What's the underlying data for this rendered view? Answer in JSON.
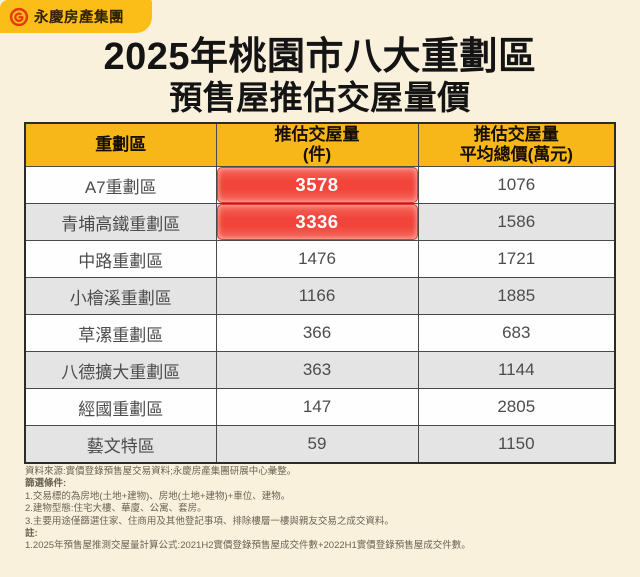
{
  "brand": {
    "name": "永慶房產集團"
  },
  "title": {
    "line1": "2025年桃園市八大重劃區",
    "line2": "預售屋推估交屋量價"
  },
  "table": {
    "headers": [
      {
        "line1": "重劃區",
        "line2": ""
      },
      {
        "line1": "推估交屋量",
        "line2": "(件)"
      },
      {
        "line1": "推估交屋量",
        "line2": "平均總價(萬元)"
      }
    ],
    "rows": [
      {
        "district": "A7重劃區",
        "volume": "3578",
        "price": "1076",
        "highlight": true
      },
      {
        "district": "青埔高鐵重劃區",
        "volume": "3336",
        "price": "1586",
        "highlight": true
      },
      {
        "district": "中路重劃區",
        "volume": "1476",
        "price": "1721",
        "highlight": false
      },
      {
        "district": "小檜溪重劃區",
        "volume": "1166",
        "price": "1885",
        "highlight": false
      },
      {
        "district": "草漯重劃區",
        "volume": "366",
        "price": "683",
        "highlight": false
      },
      {
        "district": "八德擴大重劃區",
        "volume": "363",
        "price": "1144",
        "highlight": false
      },
      {
        "district": "經國重劃區",
        "volume": "147",
        "price": "2805",
        "highlight": false
      },
      {
        "district": "藝文特區",
        "volume": "59",
        "price": "1150",
        "highlight": false
      }
    ]
  },
  "notes": {
    "source": "資料來源:實價登錄預售屋交易資料;永慶房產集團研展中心彙整。",
    "filter_label": "篩選條件:",
    "filter1": "1.交易標的為房地(土地+建物)、房地(土地+建物)+車位、建物。",
    "filter2": "2.建物型態:住宅大樓、華廈、公寓、套房。",
    "filter3": "3.主要用途僅篩選住家、住商用及其他登記事項、排除樓層一樓與親友交易之成交資料。",
    "note_label": "註:",
    "note1": "1.2025年預售屋推測交屋量計算公式:2021H2實價登錄預售屋成交件數+2022H1實價登錄預售屋成交件數。"
  },
  "colors": {
    "page_bg": "#FAF1DD",
    "gold": "#F8B718",
    "badge_gold": "#FBBE18",
    "highlight_red": "#F1443A",
    "alt_row_gray": "#E4E4E4",
    "logo_red": "#E8380D"
  },
  "chart_data": {
    "type": "table",
    "title": "2025年桃園市八大重劃區 預售屋推估交屋量價",
    "columns": [
      "重劃區",
      "推估交屋量(件)",
      "推估交屋量平均總價(萬元)"
    ],
    "rows": [
      [
        "A7重劃區",
        3578,
        1076
      ],
      [
        "青埔高鐵重劃區",
        3336,
        1586
      ],
      [
        "中路重劃區",
        1476,
        1721
      ],
      [
        "小檜溪重劃區",
        1166,
        1885
      ],
      [
        "草漯重劃區",
        366,
        683
      ],
      [
        "八德擴大重劃區",
        363,
        1144
      ],
      [
        "經國重劃區",
        147,
        2805
      ],
      [
        "藝文特區",
        59,
        1150
      ]
    ],
    "highlighted_rows": [
      "A7重劃區",
      "青埔高鐵重劃區"
    ],
    "source": "實價登錄預售屋交易資料;永慶房產集團研展中心彙整"
  }
}
